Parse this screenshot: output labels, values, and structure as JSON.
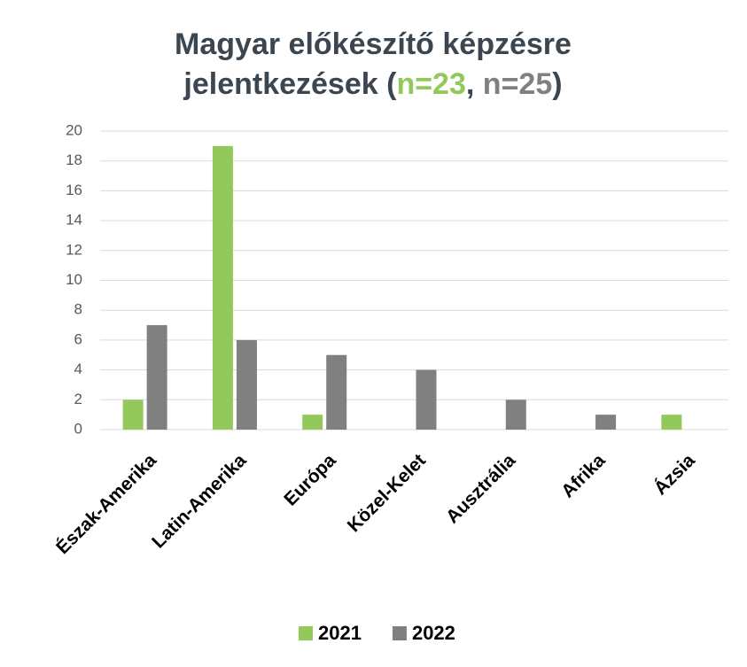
{
  "chart_data": {
    "type": "bar",
    "title": [
      "Magyar előkészítő képzésre",
      "jelentkezések (",
      "n=23",
      ", ",
      "n=25",
      ")"
    ],
    "categories": [
      "Észak-Amerika",
      "Latin-Amerika",
      "Európa",
      "Közel-Kelet",
      "Ausztrália",
      "Afrika",
      "Ázsia"
    ],
    "series": [
      {
        "name": "2021",
        "color": "#92c95a",
        "values": [
          2,
          19,
          1,
          0,
          0,
          0,
          1
        ]
      },
      {
        "name": "2022",
        "color": "#808080",
        "values": [
          7,
          6,
          5,
          4,
          2,
          1,
          0
        ]
      }
    ],
    "ylim": [
      0,
      20
    ],
    "yticks": [
      0,
      2,
      4,
      6,
      8,
      10,
      12,
      14,
      16,
      18,
      20
    ],
    "grid": true,
    "legend": "bottom"
  }
}
